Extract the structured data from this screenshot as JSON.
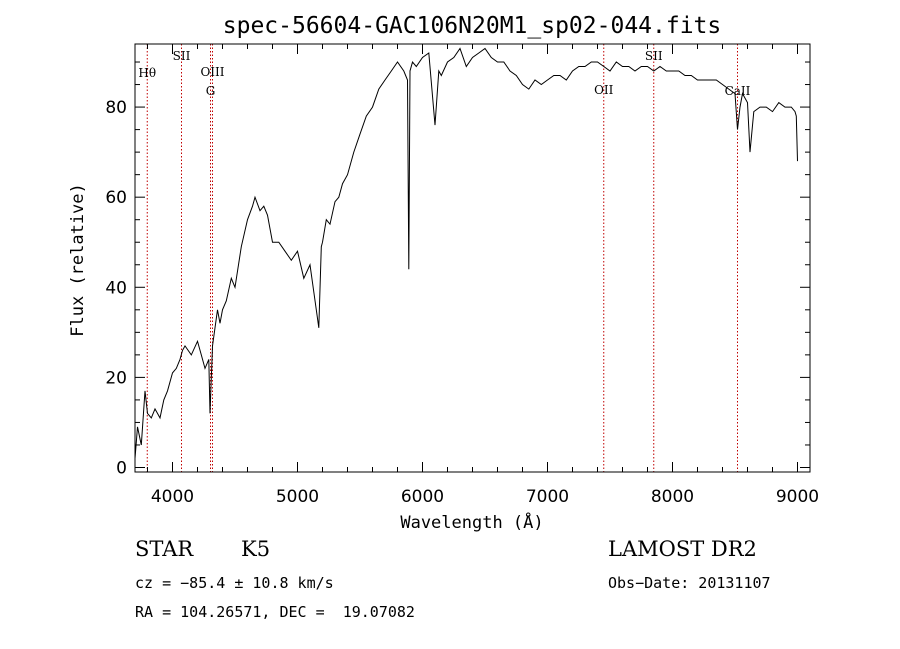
{
  "chart_data": {
    "type": "line",
    "title": "spec-56604-GAC106N20M1_sp02-044.fits",
    "xlabel": "Wavelength (Å)",
    "ylabel": "Flux (relative)",
    "xlim": [
      3700,
      9100
    ],
    "ylim": [
      -1,
      94
    ],
    "xticks": [
      4000,
      5000,
      6000,
      7000,
      8000,
      9000
    ],
    "yticks": [
      0,
      20,
      40,
      60,
      80
    ],
    "grid": false,
    "series": [
      {
        "x": [
          3700,
          3720,
          3750,
          3780,
          3800,
          3830,
          3860,
          3900,
          3930,
          3960,
          4000,
          4030,
          4060,
          4080,
          4100,
          4150,
          4200,
          4230,
          4260,
          4290,
          4300,
          4320,
          4340,
          4360,
          4380,
          4400,
          4430,
          4470,
          4500,
          4550,
          4600,
          4640,
          4660,
          4700,
          4730,
          4760,
          4800,
          4850,
          4900,
          4950,
          5000,
          5050,
          5100,
          5150,
          5170,
          5190,
          5200,
          5230,
          5260,
          5300,
          5330,
          5360,
          5400,
          5450,
          5500,
          5550,
          5600,
          5650,
          5700,
          5750,
          5800,
          5850,
          5880,
          5890,
          5900,
          5920,
          5950,
          6000,
          6050,
          6100,
          6130,
          6150,
          6200,
          6250,
          6300,
          6350,
          6400,
          6450,
          6500,
          6550,
          6600,
          6650,
          6700,
          6750,
          6800,
          6850,
          6900,
          6950,
          7000,
          7050,
          7100,
          7150,
          7200,
          7250,
          7300,
          7350,
          7400,
          7450,
          7500,
          7550,
          7600,
          7650,
          7700,
          7750,
          7800,
          7850,
          7900,
          7950,
          8000,
          8050,
          8100,
          8150,
          8200,
          8250,
          8300,
          8350,
          8400,
          8450,
          8500,
          8520,
          8540,
          8560,
          8600,
          8620,
          8650,
          8700,
          8750,
          8800,
          8850,
          8900,
          8950,
          8980,
          8990,
          9000
        ],
        "y": [
          2,
          9,
          5,
          17,
          12,
          11,
          13,
          11,
          15,
          17,
          21,
          22,
          24,
          26,
          27,
          25,
          28,
          25,
          22,
          24,
          12,
          27,
          31,
          35,
          32,
          35,
          37,
          42,
          40,
          49,
          55,
          58,
          60,
          57,
          58,
          56,
          50,
          50,
          48,
          46,
          48,
          42,
          45,
          35,
          31,
          49,
          50,
          55,
          54,
          59,
          60,
          63,
          65,
          70,
          74,
          78,
          80,
          84,
          86,
          88,
          90,
          88,
          86,
          44,
          88,
          90,
          89,
          91,
          92,
          76,
          88,
          87,
          90,
          91,
          93,
          89,
          91,
          92,
          93,
          91,
          90,
          90,
          88,
          87,
          85,
          84,
          86,
          85,
          86,
          87,
          87,
          86,
          88,
          89,
          89,
          90,
          90,
          89,
          88,
          90,
          89,
          89,
          88,
          89,
          89,
          88,
          89,
          88,
          88,
          88,
          87,
          87,
          86,
          86,
          86,
          86,
          85,
          84,
          83,
          75,
          80,
          83,
          81,
          70,
          79,
          80,
          80,
          79,
          81,
          80,
          80,
          79,
          78,
          68
        ]
      }
    ],
    "line_markers": [
      {
        "label": "Hθ",
        "x": 3798
      },
      {
        "label": "SII",
        "x": 4072
      },
      {
        "label": "OIII",
        "x": 4320
      },
      {
        "label": "G",
        "x": 4304
      },
      {
        "label": "OII",
        "x": 7450
      },
      {
        "label": "SII",
        "x": 7850
      },
      {
        "label": "CaII",
        "x": 8520
      }
    ],
    "marker_color": "#c00000"
  },
  "info": {
    "object_type": "STAR",
    "subclass": "K5",
    "survey": "LAMOST DR2",
    "cz": "cz = −85.4 ± 10.8 km/s",
    "obs_date": "Obs−Date: 20131107",
    "coords": "RA = 104.26571, DEC =  19.07082"
  }
}
